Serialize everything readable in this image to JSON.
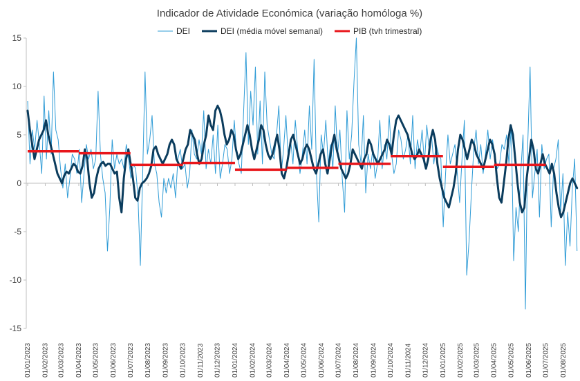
{
  "chart_data": {
    "type": "line",
    "title": "Indicador de Atividade Económica (variação homóloga %)",
    "xlabel": "",
    "ylabel": "",
    "ylim": [
      -15,
      15
    ],
    "yticks": [
      "15",
      "10",
      "5",
      "0",
      "-5",
      "-10",
      "-15"
    ],
    "grid": false,
    "legend_position": "top",
    "x_tick_labels": [
      "01/01/2023",
      "01/02/2023",
      "01/03/2023",
      "01/04/2023",
      "01/05/2023",
      "01/06/2023",
      "01/07/2023",
      "01/08/2023",
      "01/09/2023",
      "01/10/2023",
      "01/11/2023",
      "01/12/2023",
      "01/01/2024",
      "01/02/2024",
      "01/03/2024",
      "01/04/2024",
      "01/05/2024",
      "01/06/2024",
      "01/07/2024",
      "01/08/2024",
      "01/09/2024",
      "01/10/2024",
      "01/11/2024",
      "01/12/2024",
      "01/01/2025",
      "01/02/2025",
      "01/03/2025",
      "01/04/2025",
      "01/05/2025",
      "01/06/2025",
      "01/07/2025",
      "01/08/2025"
    ],
    "series": [
      {
        "name": "DEI",
        "color": "#2e9bd6",
        "style": "thin-line",
        "values": [
          8.5,
          2.0,
          5.5,
          3.5,
          6.5,
          4.0,
          1.0,
          9.0,
          2.5,
          7.5,
          3.0,
          11.5,
          5.5,
          4.5,
          1.5,
          -0.5,
          2.0,
          -1.5,
          0.5,
          3.0,
          2.5,
          1.0,
          3.5,
          -2.0,
          1.0,
          4.0,
          2.5,
          3.5,
          1.5,
          2.5,
          9.5,
          3.0,
          0.5,
          -1.0,
          -7.0,
          -2.5,
          4.5,
          1.5,
          3.0,
          2.0,
          2.5,
          1.5,
          4.0,
          2.5,
          0.5,
          2.0,
          1.5,
          -1.5,
          -8.5,
          1.0,
          11.5,
          3.0,
          4.5,
          7.0,
          2.0,
          1.0,
          -2.0,
          -3.5,
          0.5,
          -1.0,
          0.5,
          -0.5,
          1.0,
          -1.5,
          2.5,
          3.5,
          1.5,
          2.0,
          -0.5,
          1.0,
          5.5,
          3.0,
          2.5,
          4.5,
          3.0,
          7.5,
          1.5,
          3.5,
          2.0,
          5.0,
          1.0,
          6.0,
          0.5,
          2.0,
          4.0,
          3.5,
          1.0,
          2.5,
          6.5,
          3.0,
          2.0,
          1.0,
          7.5,
          13.5,
          4.0,
          9.5,
          6.0,
          12.0,
          3.0,
          8.5,
          2.0,
          11.5,
          6.0,
          4.5,
          3.0,
          2.5,
          5.0,
          8.0,
          1.0,
          3.5,
          7.0,
          2.5,
          4.5,
          2.0,
          6.5,
          3.5,
          1.0,
          3.0,
          5.5,
          2.0,
          8.0,
          3.5,
          12.8,
          1.0,
          -4.0,
          5.0,
          3.0,
          6.5,
          2.0,
          4.0,
          1.5,
          8.0,
          3.0,
          5.5,
          0.5,
          -3.0,
          7.5,
          2.5,
          5.0,
          10.5,
          15.0,
          4.0,
          2.0,
          7.0,
          -1.0,
          3.0,
          1.5,
          3.5,
          0.5,
          2.0,
          6.5,
          1.5,
          4.0,
          2.5,
          7.0,
          3.0,
          1.0,
          2.0,
          5.5,
          4.5,
          2.5,
          3.5,
          5.0,
          2.0,
          7.0,
          1.5,
          4.5,
          3.0,
          5.5,
          2.0,
          6.0,
          3.5,
          5.0,
          2.0,
          4.0,
          3.0,
          2.5,
          -4.5,
          1.0,
          5.0,
          2.0,
          3.0,
          4.0,
          1.0,
          -2.0,
          2.5,
          6.5,
          -9.5,
          -6.0,
          -1.0,
          3.5,
          5.5,
          2.0,
          4.0,
          1.0,
          3.0,
          5.5,
          2.5,
          4.5,
          3.0,
          1.5,
          2.0,
          4.0,
          3.5,
          5.0,
          2.0,
          6.0,
          -8.0,
          -2.5,
          -5.0,
          1.0,
          5.0,
          -13.0,
          4.0,
          12.0,
          -1.5,
          1.0,
          3.5,
          -3.5,
          4.0,
          1.5,
          2.5,
          3.0,
          -4.5,
          1.5,
          2.5,
          4.5,
          -3.0,
          1.0,
          -8.5,
          -3.0,
          -6.5,
          -0.5,
          2.5,
          -7.0
        ]
      },
      {
        "name": "DEI (média móvel semanal)",
        "color": "#0b3c5d",
        "style": "thick-line",
        "values": [
          7.5,
          5.5,
          4.0,
          2.5,
          3.5,
          4.5,
          5.0,
          5.5,
          6.5,
          5.0,
          4.0,
          3.0,
          2.0,
          1.0,
          0.5,
          0.0,
          0.8,
          1.2,
          1.0,
          1.5,
          2.0,
          1.8,
          1.2,
          1.0,
          1.8,
          3.5,
          2.5,
          0.0,
          -1.5,
          -1.0,
          0.5,
          1.5,
          2.0,
          2.2,
          1.8,
          2.0,
          2.0,
          1.5,
          1.0,
          1.2,
          -1.5,
          -3.0,
          0.5,
          2.5,
          3.5,
          2.0,
          0.5,
          -1.5,
          -1.8,
          -0.5,
          0.0,
          0.2,
          0.5,
          1.0,
          1.8,
          3.5,
          3.8,
          3.0,
          2.5,
          2.0,
          2.5,
          3.0,
          4.0,
          4.5,
          4.0,
          2.5,
          2.0,
          1.5,
          2.5,
          3.5,
          4.0,
          5.5,
          5.0,
          4.5,
          3.0,
          2.0,
          2.5,
          4.0,
          5.0,
          7.0,
          6.0,
          5.5,
          7.5,
          8.0,
          7.5,
          6.5,
          5.0,
          4.0,
          4.5,
          5.5,
          5.0,
          3.5,
          2.5,
          3.0,
          4.0,
          5.0,
          6.0,
          5.0,
          3.5,
          2.5,
          3.5,
          4.5,
          6.0,
          5.5,
          4.0,
          3.0,
          2.5,
          3.0,
          4.0,
          5.0,
          3.5,
          1.0,
          0.5,
          1.5,
          3.0,
          4.5,
          5.0,
          4.0,
          3.0,
          2.0,
          2.5,
          3.5,
          4.0,
          3.5,
          2.5,
          1.5,
          1.0,
          2.0,
          3.0,
          3.5,
          2.0,
          1.0,
          2.5,
          4.0,
          5.0,
          3.5,
          2.5,
          1.5,
          1.0,
          0.5,
          1.0,
          2.0,
          3.5,
          3.0,
          2.5,
          2.0,
          1.5,
          2.5,
          3.0,
          4.5,
          4.0,
          3.0,
          2.5,
          2.0,
          2.5,
          3.0,
          3.5,
          4.5,
          4.0,
          3.0,
          5.0,
          6.5,
          7.0,
          6.5,
          6.0,
          5.5,
          5.0,
          4.0,
          3.0,
          2.5,
          2.8,
          3.5,
          3.0,
          2.5,
          1.5,
          2.5,
          4.5,
          5.5,
          4.5,
          2.0,
          0.5,
          -0.5,
          -1.5,
          -2.0,
          -2.5,
          -1.5,
          -0.5,
          1.0,
          3.5,
          5.0,
          4.5,
          3.5,
          2.5,
          3.5,
          4.5,
          4.0,
          3.0,
          2.5,
          2.0,
          1.5,
          2.5,
          3.5,
          4.5,
          4.0,
          3.0,
          0.5,
          -1.5,
          -2.0,
          0.0,
          2.0,
          4.5,
          6.0,
          5.0,
          2.5,
          0.0,
          -2.0,
          -3.0,
          -2.5,
          0.5,
          2.5,
          4.5,
          3.5,
          1.5,
          1.0,
          2.0,
          3.0,
          2.0,
          1.5,
          1.0,
          2.0,
          1.0,
          -1.0,
          -2.5,
          -3.5,
          -3.0,
          -2.0,
          -1.0,
          0.0,
          0.5,
          0.0,
          -0.5
        ]
      },
      {
        "name": "PIB (tvh trimestral)",
        "color": "#e8161b",
        "style": "step",
        "segments": [
          {
            "from": "01/01/2023",
            "to": "01/04/2023",
            "value": 3.3
          },
          {
            "from": "01/04/2023",
            "to": "01/07/2023",
            "value": 3.1
          },
          {
            "from": "01/07/2023",
            "to": "01/10/2023",
            "value": 1.9
          },
          {
            "from": "01/10/2023",
            "to": "01/01/2024",
            "value": 2.1
          },
          {
            "from": "01/01/2024",
            "to": "01/04/2024",
            "value": 1.4
          },
          {
            "from": "01/04/2024",
            "to": "01/07/2024",
            "value": 1.6
          },
          {
            "from": "01/07/2024",
            "to": "01/10/2024",
            "value": 2.0
          },
          {
            "from": "01/10/2024",
            "to": "01/01/2025",
            "value": 2.8
          },
          {
            "from": "01/01/2025",
            "to": "01/04/2025",
            "value": 1.7
          },
          {
            "from": "01/04/2025",
            "to": "01/07/2025",
            "value": 1.9
          }
        ]
      }
    ]
  }
}
